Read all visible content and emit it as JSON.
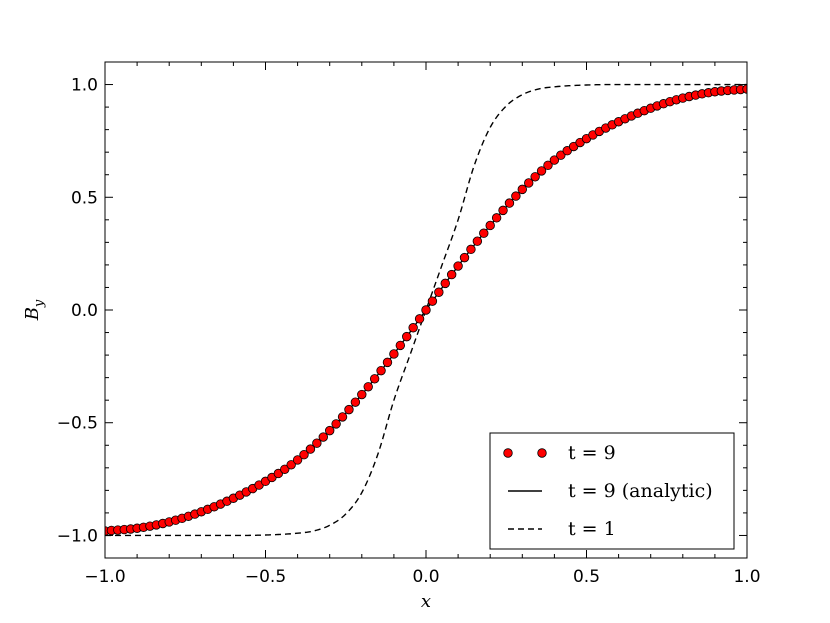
{
  "chart_data": {
    "type": "line",
    "title": "",
    "xlabel": "x",
    "ylabel": "B",
    "ylabel_subscript": "y",
    "xlim": [
      -1.0,
      1.0
    ],
    "ylim": [
      -1.1,
      1.1
    ],
    "xticks": [
      -1.0,
      -0.5,
      0.0,
      0.5,
      1.0
    ],
    "yticks": [
      -1.0,
      -0.5,
      0.0,
      0.5,
      1.0
    ],
    "xtick_labels": [
      "−1.0",
      "−0.5",
      "0.0",
      "0.5",
      "1.0"
    ],
    "ytick_labels": [
      "−1.0",
      "−0.5",
      "0.0",
      "0.5",
      "1.0"
    ],
    "grid": false,
    "legend_position": "lower-right",
    "series": [
      {
        "name": "t = 9",
        "style": "markers",
        "marker_color": "#ff0000",
        "x": [
          -1.0,
          -0.9,
          -0.8,
          -0.7,
          -0.6,
          -0.5,
          -0.4,
          -0.3,
          -0.2,
          -0.1,
          0.0,
          0.1,
          0.2,
          0.3,
          0.4,
          0.5,
          0.6,
          0.7,
          0.8,
          0.9,
          1.0
        ],
        "y": [
          -0.98,
          -0.968,
          -0.94,
          -0.895,
          -0.835,
          -0.76,
          -0.665,
          -0.535,
          -0.375,
          -0.195,
          0.0,
          0.195,
          0.375,
          0.535,
          0.665,
          0.76,
          0.835,
          0.895,
          0.94,
          0.968,
          0.98
        ]
      },
      {
        "name": "t = 9 (analytic)",
        "style": "solid",
        "color": "#000000",
        "x": [
          -1.0,
          -0.9,
          -0.8,
          -0.7,
          -0.6,
          -0.5,
          -0.4,
          -0.3,
          -0.2,
          -0.1,
          0.0,
          0.1,
          0.2,
          0.3,
          0.4,
          0.5,
          0.6,
          0.7,
          0.8,
          0.9,
          1.0
        ],
        "y": [
          -0.98,
          -0.968,
          -0.94,
          -0.895,
          -0.835,
          -0.76,
          -0.665,
          -0.535,
          -0.375,
          -0.195,
          0.0,
          0.195,
          0.375,
          0.535,
          0.665,
          0.76,
          0.835,
          0.895,
          0.94,
          0.968,
          0.98
        ]
      },
      {
        "name": "t = 1",
        "style": "dashed",
        "color": "#000000",
        "x": [
          -1.0,
          -0.6,
          -0.5,
          -0.4,
          -0.35,
          -0.3,
          -0.25,
          -0.2,
          -0.15,
          -0.1,
          -0.05,
          0.0,
          0.05,
          0.1,
          0.15,
          0.2,
          0.25,
          0.3,
          0.35,
          0.4,
          0.5,
          0.6,
          1.0
        ],
        "y": [
          -1.0,
          -1.0,
          -0.998,
          -0.99,
          -0.98,
          -0.955,
          -0.905,
          -0.81,
          -0.64,
          -0.4,
          -0.2,
          0.0,
          0.2,
          0.4,
          0.64,
          0.81,
          0.905,
          0.955,
          0.98,
          0.99,
          0.998,
          1.0,
          1.0
        ]
      }
    ]
  }
}
